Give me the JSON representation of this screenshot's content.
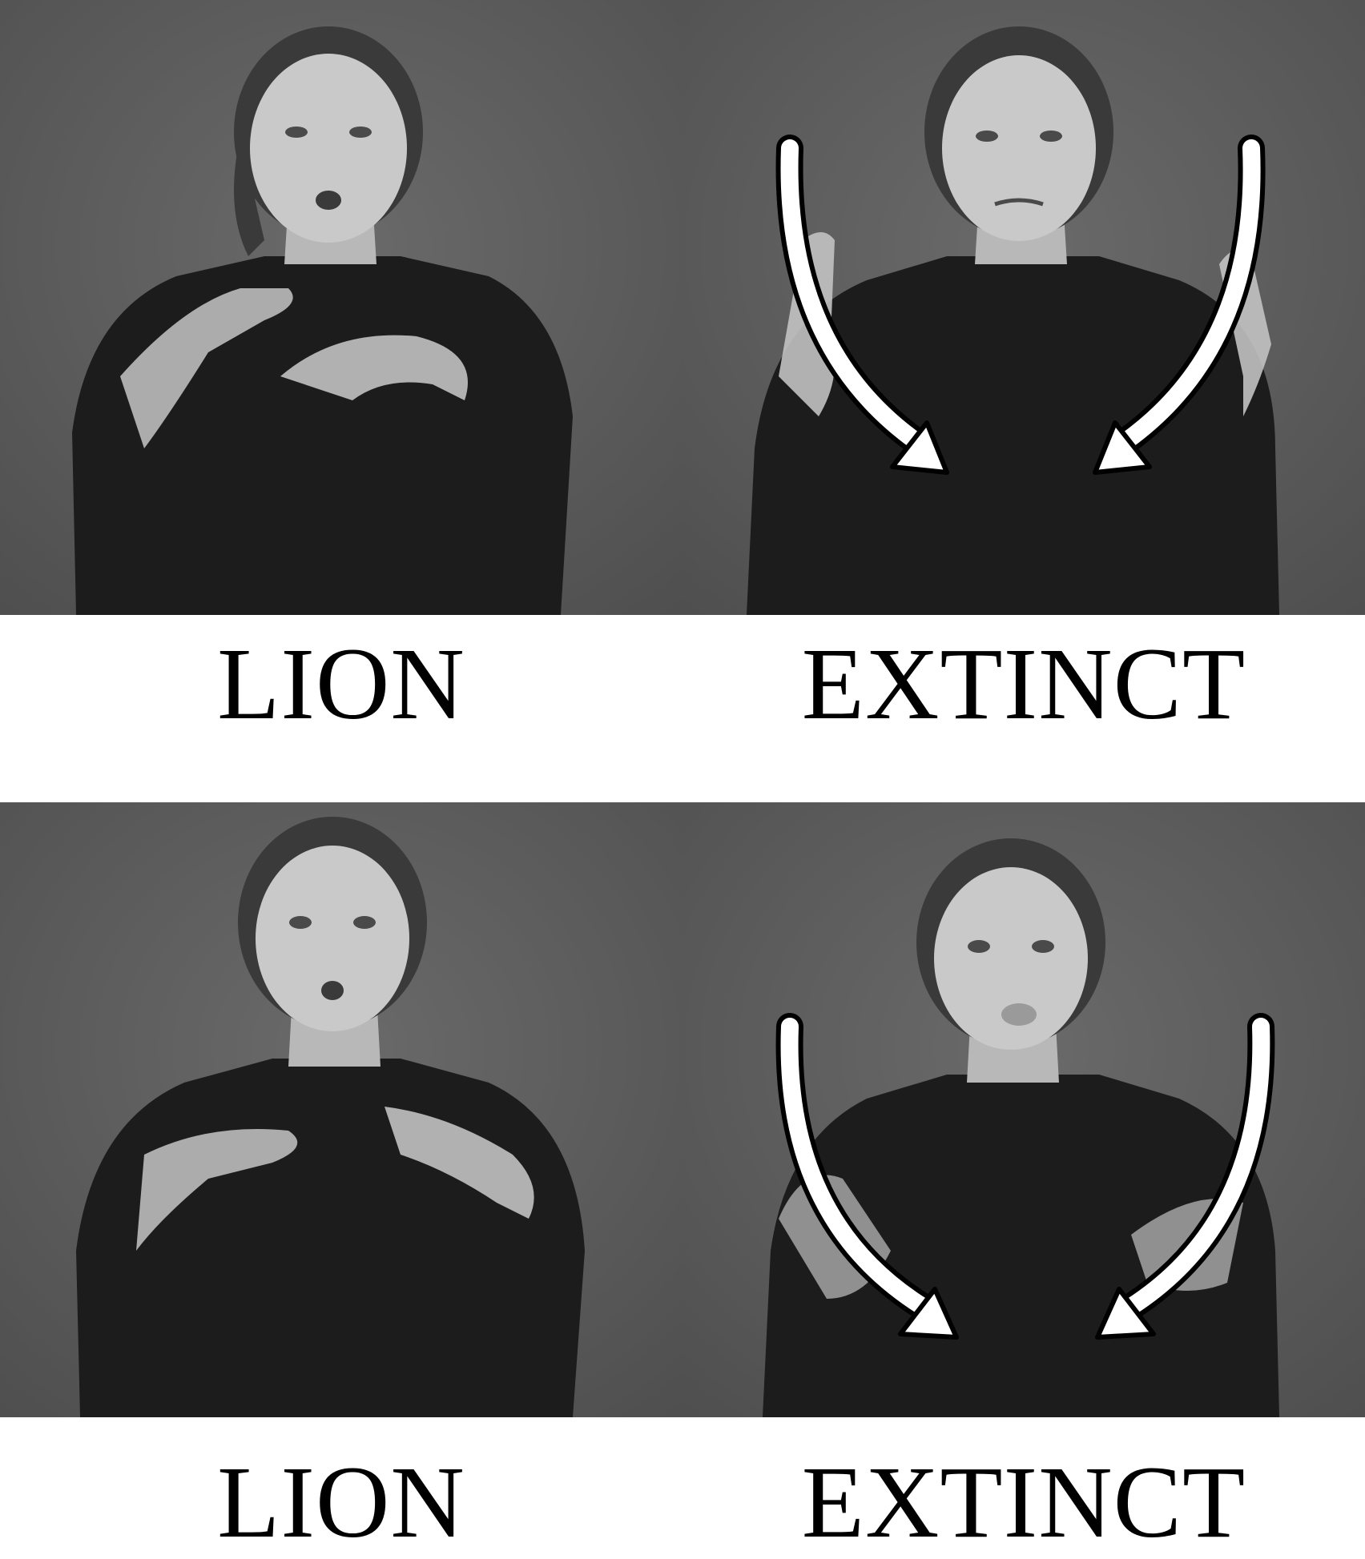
{
  "panels": [
    {
      "caption": "LION"
    },
    {
      "caption": "EXTINCT"
    },
    {
      "caption": "LION"
    },
    {
      "caption": "EXTINCT"
    }
  ],
  "colors": {
    "backdrop": "#5a5a5a",
    "shirt": "#1c1c1c",
    "skin": "#c9c9c9",
    "hair": "#3a3a3a",
    "arrow_fill": "#ffffff",
    "arrow_outline": "#000000",
    "caption": "#000000",
    "page_background": "#ffffff"
  },
  "icons": [
    "curved-arrow-left-icon",
    "curved-arrow-right-icon"
  ]
}
